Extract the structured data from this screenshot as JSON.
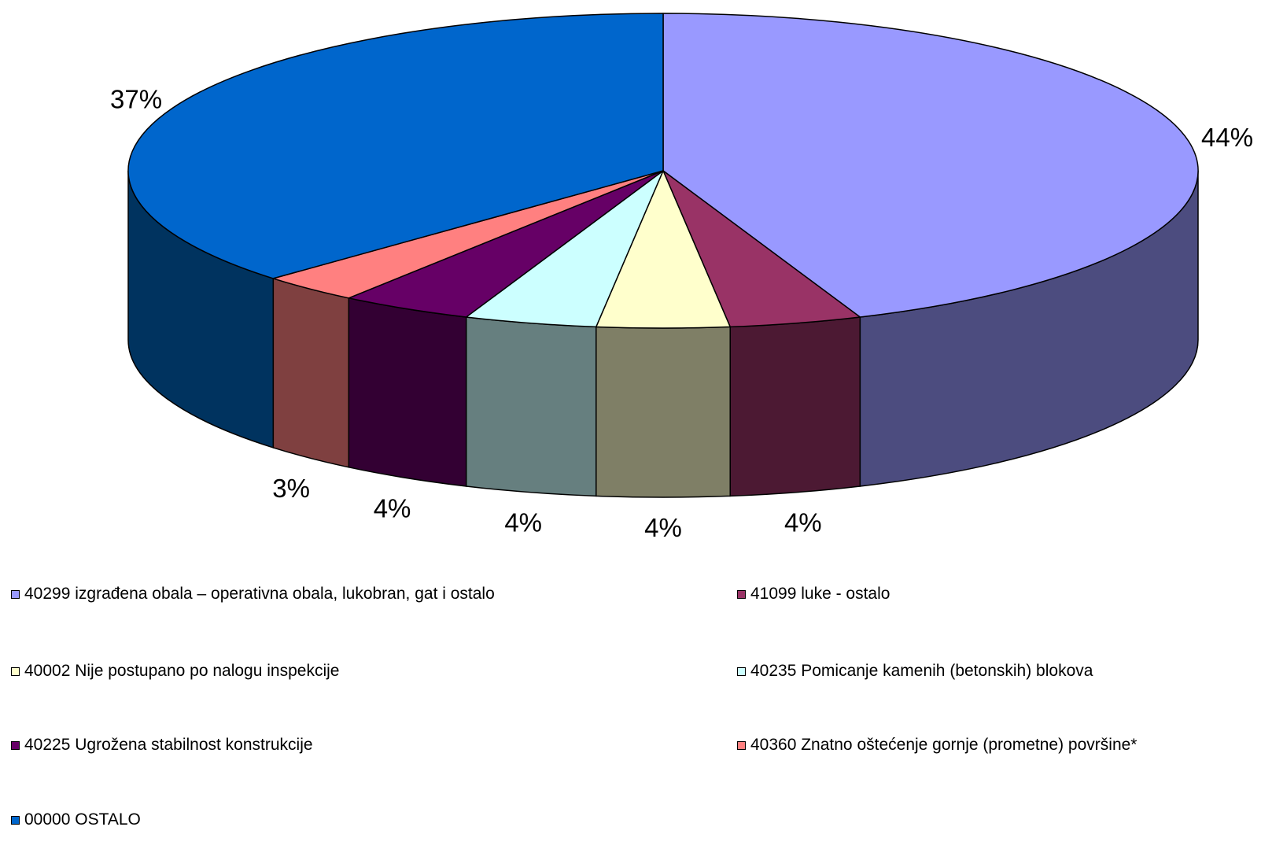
{
  "chart_data": {
    "type": "pie",
    "style": "3d",
    "categories": [
      "40299 izgrađena obala – operativna obala, lukobran, gat i ostalo",
      "41099  luke - ostalo",
      "40002 Nije postupano po nalogu inspekcije",
      "40235 Pomicanje kamenih (betonskih) blokova",
      "40225 Ugrožena stabilnost konstrukcije",
      "40360 Znatno oštećenje gornje (prometne) površine*",
      "00000 OSTALO"
    ],
    "values": [
      44,
      4,
      4,
      4,
      4,
      3,
      37
    ],
    "labels": [
      "44%",
      "4%",
      "4%",
      "4%",
      "4%",
      "3%",
      "37%"
    ],
    "colors": [
      "#9999FF",
      "#993366",
      "#FFFFCC",
      "#CCFFFF",
      "#660066",
      "#FF8080",
      "#0066CC"
    ],
    "side_colors": [
      "#4C4C7F",
      "#4C1933",
      "#7F7F66",
      "#667F7F",
      "#330033",
      "#7F4040",
      "#00335F"
    ],
    "legend_position": "bottom"
  }
}
